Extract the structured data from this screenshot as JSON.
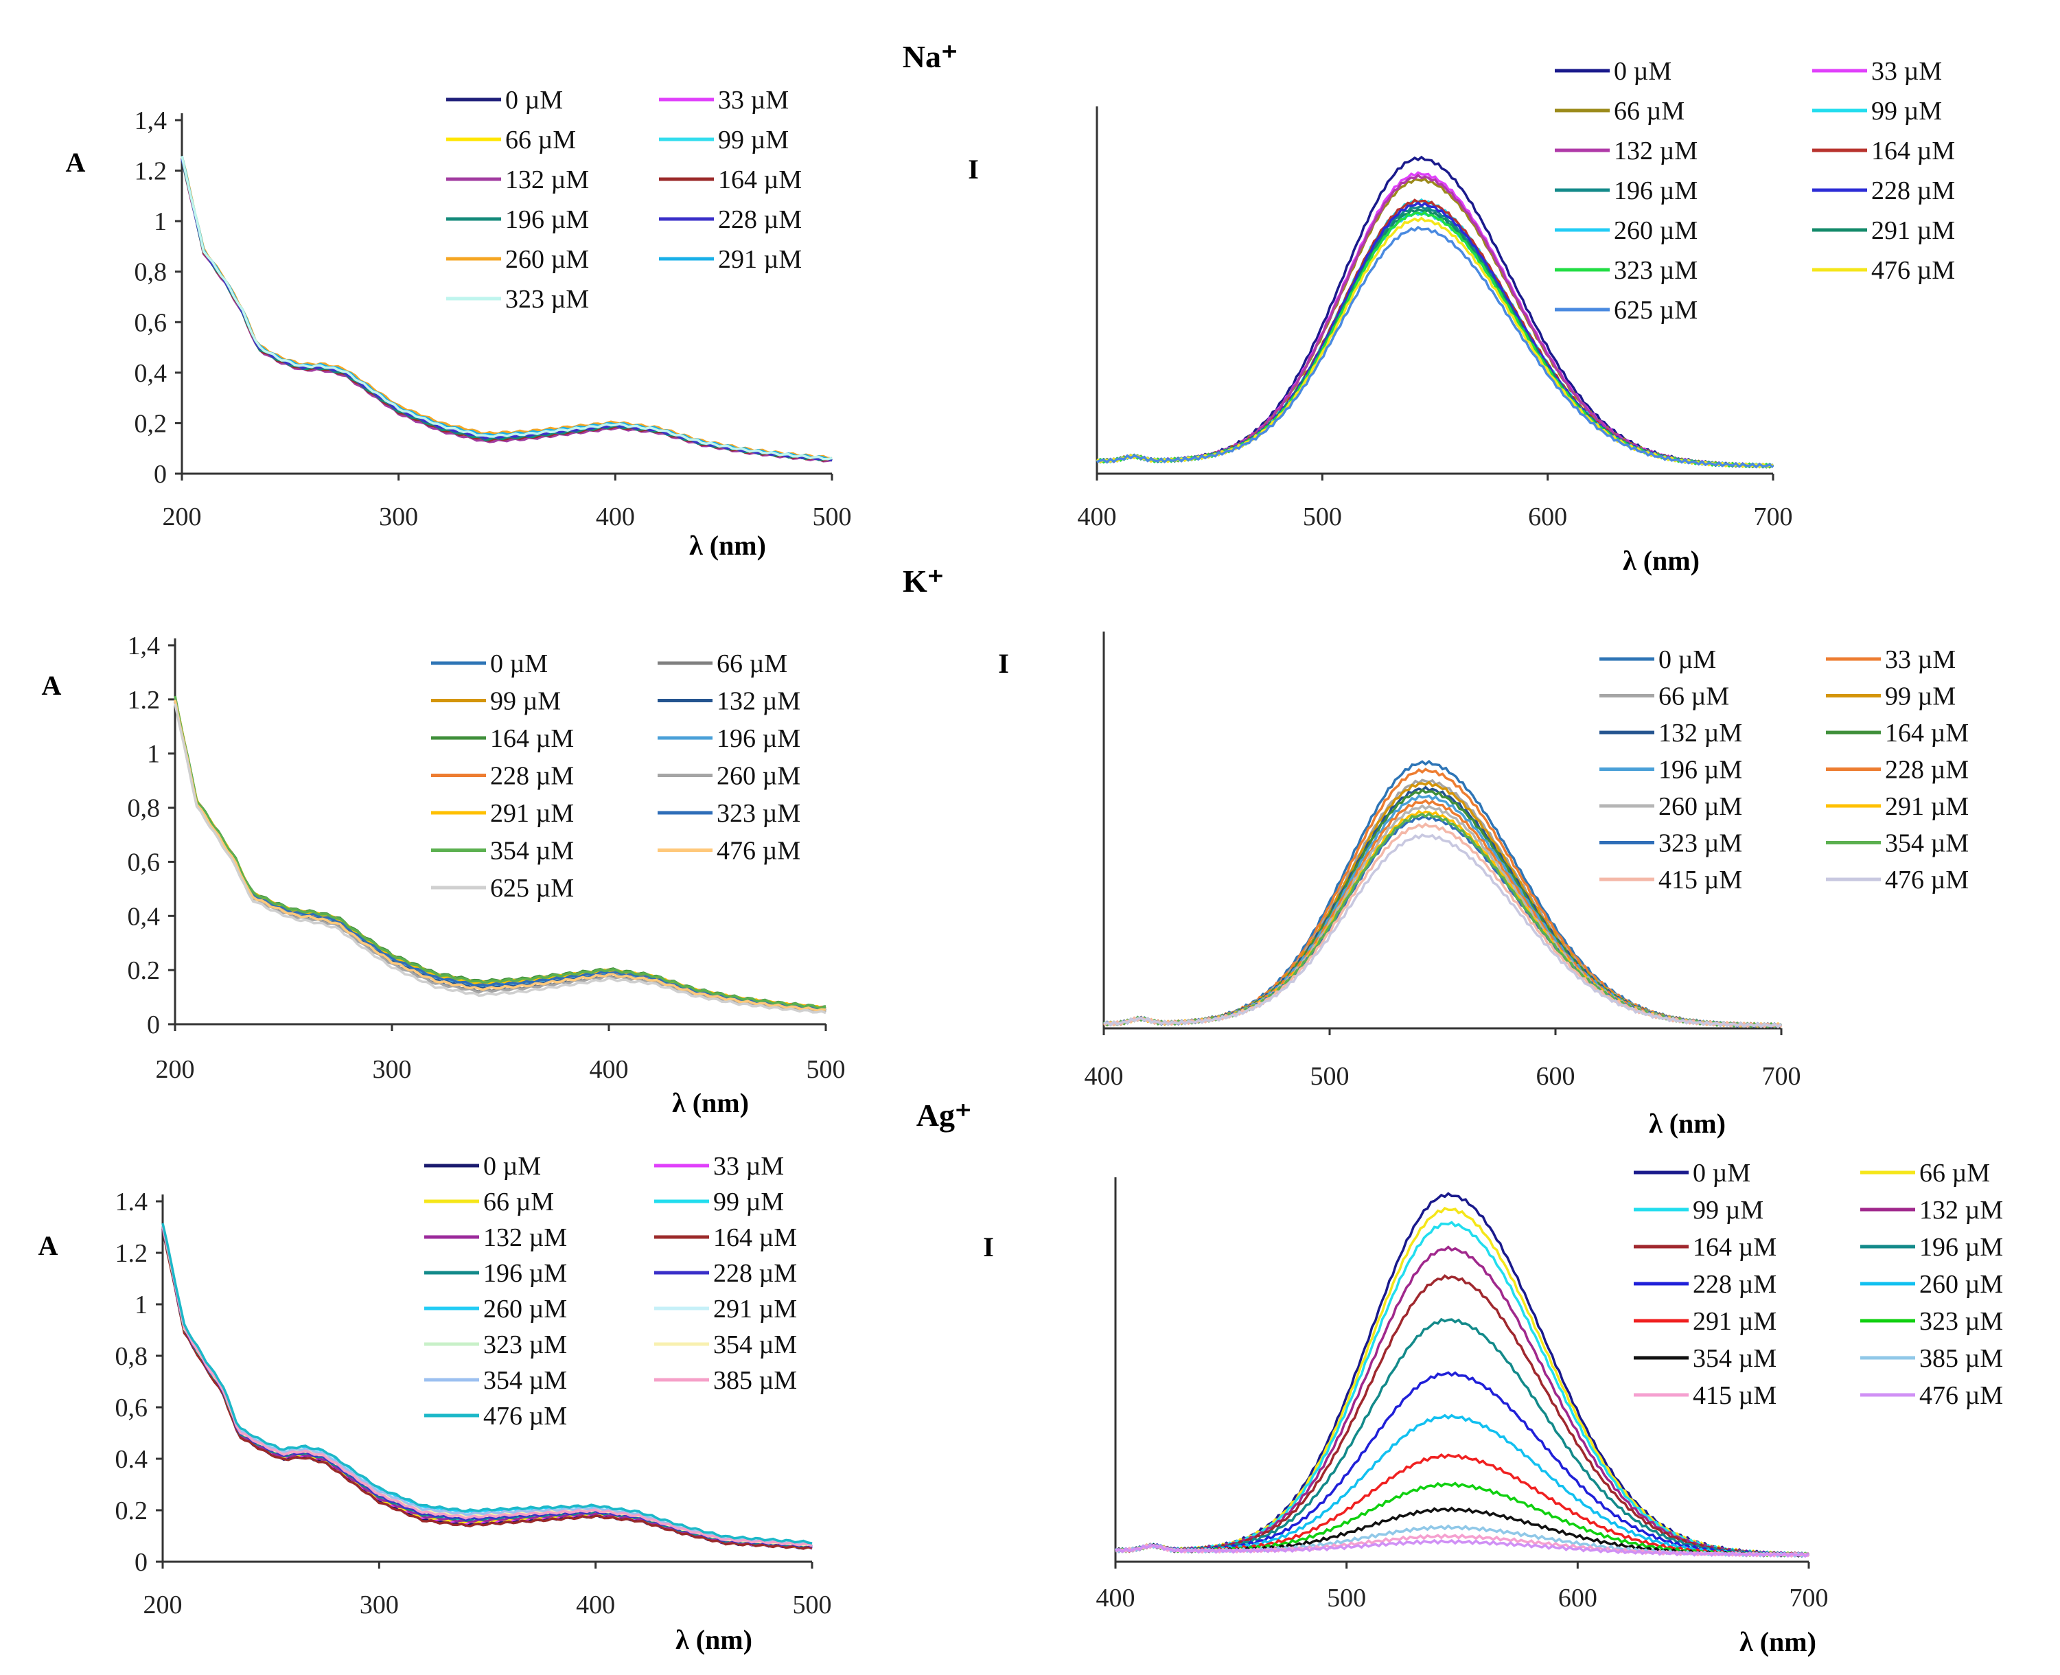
{
  "figure": {
    "ion_titles": [
      "Na⁺",
      "K⁺",
      "Ag⁺"
    ]
  },
  "chart_data": [
    {
      "id": "na_abs",
      "type": "line",
      "title": "Na⁺",
      "xlabel": "λ (nm)",
      "ylabel": "A",
      "xlim": [
        200,
        500
      ],
      "ylim": [
        0,
        1.4
      ],
      "xticks": [
        "200",
        "300",
        "400",
        "500"
      ],
      "yticks": [
        "0",
        "0,2",
        "0,4",
        "0,6",
        "0,8",
        "1",
        "1.2",
        "1,4"
      ],
      "ytick_values": [
        0,
        0.2,
        0.4,
        0.6,
        0.8,
        1,
        1.2,
        1.4
      ],
      "grid": false,
      "legend_position": "top-right",
      "x": [
        200,
        210,
        220,
        228,
        235,
        245,
        255,
        265,
        275,
        285,
        300,
        320,
        340,
        360,
        380,
        400,
        420,
        440,
        460,
        480,
        500
      ],
      "base": [
        1.25,
        0.88,
        0.76,
        0.64,
        0.5,
        0.45,
        0.42,
        0.42,
        0.4,
        0.34,
        0.25,
        0.18,
        0.14,
        0.15,
        0.17,
        0.19,
        0.17,
        0.12,
        0.09,
        0.07,
        0.055
      ],
      "series": [
        {
          "name": "0 µM",
          "color": "#1f1f7a",
          "offset": 0
        },
        {
          "name": "33 µM",
          "color": "#e040fb",
          "offset": 0.004
        },
        {
          "name": "66 µM",
          "color": "#ffe600",
          "offset": 0.01
        },
        {
          "name": "99 µM",
          "color": "#33ddee",
          "offset": 0.006
        },
        {
          "name": "132 µM",
          "color": "#a23ca0",
          "offset": -0.008
        },
        {
          "name": "164 µM",
          "color": "#9b2a2a",
          "offset": -0.004
        },
        {
          "name": "196  µM",
          "color": "#138a7a",
          "offset": -0.002
        },
        {
          "name": "228 µM",
          "color": "#3a2fc8",
          "offset": 0.002
        },
        {
          "name": "260 µM",
          "color": "#f5a623",
          "offset": 0.012
        },
        {
          "name": "291 µM",
          "color": "#19b0e8",
          "offset": 0.008
        },
        {
          "name": "323 µM",
          "color": "#bff5ee",
          "offset": 0.005
        }
      ]
    },
    {
      "id": "na_em",
      "type": "line",
      "xlabel": "λ (nm)",
      "ylabel": "I",
      "xlim": [
        400,
        700
      ],
      "xticks": [
        "400",
        "500",
        "600",
        "700"
      ],
      "grid": false,
      "legend_position": "top-right",
      "peak_nm": 543,
      "series": [
        {
          "name": "0 µM",
          "color": "#1a1a8c",
          "peak": 1.0
        },
        {
          "name": "33 µM",
          "color": "#e040fb",
          "peak": 0.95
        },
        {
          "name": "66 µM",
          "color": "#9b8a1a",
          "peak": 0.93
        },
        {
          "name": "99 µM",
          "color": "#22ddee",
          "peak": 0.86
        },
        {
          "name": "132 µM",
          "color": "#b03aa8",
          "peak": 0.94
        },
        {
          "name": "164 µM",
          "color": "#b8332e",
          "peak": 0.86
        },
        {
          "name": "196  µM",
          "color": "#138a8a",
          "peak": 0.84
        },
        {
          "name": "228 µM",
          "color": "#2c2cd6",
          "peak": 0.85
        },
        {
          "name": "260 µM",
          "color": "#22ccf5",
          "peak": 0.82
        },
        {
          "name": "291 µM",
          "color": "#138a6a",
          "peak": 0.83
        },
        {
          "name": "323 µM",
          "color": "#22dd44",
          "peak": 0.82
        },
        {
          "name": "476 µM",
          "color": "#f5e61a",
          "peak": 0.8
        },
        {
          "name": "625 µM",
          "color": "#4a8ae0",
          "peak": 0.77
        }
      ]
    },
    {
      "id": "k_abs",
      "type": "line",
      "title": "K⁺",
      "xlabel": "λ (nm)",
      "ylabel": "A",
      "xlim": [
        200,
        500
      ],
      "ylim": [
        0,
        1.4
      ],
      "xticks": [
        "200",
        "300",
        "400",
        "500"
      ],
      "yticks": [
        "0",
        "0.2",
        "0,4",
        "0,6",
        "0,8",
        "1",
        "1.2",
        "1,4"
      ],
      "ytick_values": [
        0,
        0.2,
        0.4,
        0.6,
        0.8,
        1,
        1.2,
        1.4
      ],
      "grid": false,
      "legend_position": "top-right",
      "x": [
        200,
        210,
        220,
        228,
        235,
        245,
        255,
        265,
        275,
        285,
        300,
        320,
        340,
        360,
        380,
        400,
        420,
        440,
        460,
        480,
        500
      ],
      "base": [
        1.2,
        0.82,
        0.7,
        0.6,
        0.48,
        0.44,
        0.41,
        0.4,
        0.38,
        0.32,
        0.24,
        0.17,
        0.14,
        0.15,
        0.17,
        0.19,
        0.17,
        0.12,
        0.09,
        0.07,
        0.055
      ],
      "series": [
        {
          "name": "0 µM",
          "color": "#2e75b6",
          "offset": 0
        },
        {
          "name": "66 µM",
          "color": "#808080",
          "offset": -0.01
        },
        {
          "name": "99 µM",
          "color": "#d4950a",
          "offset": 0.004
        },
        {
          "name": "132 µM",
          "color": "#24548f",
          "offset": -0.004
        },
        {
          "name": "164 µM",
          "color": "#3f8f3a",
          "offset": 0.012
        },
        {
          "name": "196  µM",
          "color": "#4aa0d8",
          "offset": 0.003
        },
        {
          "name": "228 µM",
          "color": "#ed7d31",
          "offset": 0.006
        },
        {
          "name": "260 µM",
          "color": "#a5a5a5",
          "offset": -0.012
        },
        {
          "name": "291 µM",
          "color": "#ffc000",
          "offset": 0.008
        },
        {
          "name": "323 µM",
          "color": "#2f6eb8",
          "offset": 0.002
        },
        {
          "name": "354 µM",
          "color": "#5bb04f",
          "offset": 0.01
        },
        {
          "name": "476 µM",
          "color": "#ffc87a",
          "offset": -0.006
        },
        {
          "name": "625 µM",
          "color": "#d0d0d0",
          "offset": -0.02
        }
      ]
    },
    {
      "id": "k_em",
      "type": "line",
      "xlabel": "λ (nm)",
      "ylabel": "I",
      "xlim": [
        400,
        700
      ],
      "xticks": [
        "400",
        "500",
        "600",
        "700"
      ],
      "grid": false,
      "legend_position": "top-right",
      "peak_nm": 542,
      "series": [
        {
          "name": "0 µM",
          "color": "#2e75b6",
          "peak": 1.0
        },
        {
          "name": "33 µM",
          "color": "#ed7d31",
          "peak": 0.97
        },
        {
          "name": "66 µM",
          "color": "#a5a5a5",
          "peak": 0.93
        },
        {
          "name": "99 µM",
          "color": "#d4950a",
          "peak": 0.92
        },
        {
          "name": "132 µM",
          "color": "#24548f",
          "peak": 0.9
        },
        {
          "name": "164 µM",
          "color": "#3f8f3a",
          "peak": 0.89
        },
        {
          "name": "196  µM",
          "color": "#4aa0d8",
          "peak": 0.87
        },
        {
          "name": "228 µM",
          "color": "#ed7d31",
          "peak": 0.85
        },
        {
          "name": "260 µM",
          "color": "#b5b5b5",
          "peak": 0.83
        },
        {
          "name": "291 µM",
          "color": "#ffc000",
          "peak": 0.81
        },
        {
          "name": "323 µM",
          "color": "#2f6eb8",
          "peak": 0.79
        },
        {
          "name": "354 µM",
          "color": "#5bb04f",
          "peak": 0.8
        },
        {
          "name": "415 µM",
          "color": "#f4b8a8",
          "peak": 0.76
        },
        {
          "name": "476 µM",
          "color": "#c8c8e0",
          "peak": 0.72
        }
      ]
    },
    {
      "id": "ag_abs",
      "type": "line",
      "title": "Ag⁺",
      "xlabel": "λ (nm)",
      "ylabel": "A",
      "xlim": [
        200,
        500
      ],
      "ylim": [
        0,
        1.4
      ],
      "xticks": [
        "200",
        "300",
        "400",
        "500"
      ],
      "yticks": [
        "0",
        "0.2",
        "0.4",
        "0,6",
        "0,8",
        "1",
        "1.2",
        "1.4"
      ],
      "ytick_values": [
        0,
        0.2,
        0.4,
        0.6,
        0.8,
        1,
        1.2,
        1.4
      ],
      "grid": false,
      "legend_position": "top-right",
      "x": [
        200,
        210,
        220,
        228,
        235,
        245,
        255,
        265,
        275,
        285,
        300,
        320,
        340,
        360,
        380,
        400,
        420,
        440,
        460,
        480,
        500
      ],
      "base": [
        1.3,
        0.9,
        0.76,
        0.66,
        0.5,
        0.45,
        0.41,
        0.42,
        0.4,
        0.34,
        0.25,
        0.18,
        0.16,
        0.17,
        0.18,
        0.19,
        0.17,
        0.12,
        0.08,
        0.07,
        0.06
      ],
      "series": [
        {
          "name": "0 µM",
          "color": "#1a1a6e",
          "offset": -0.01
        },
        {
          "name": "33 µM",
          "color": "#e040fb",
          "offset": -0.006
        },
        {
          "name": "66 µM",
          "color": "#f5e61a",
          "offset": -0.004
        },
        {
          "name": "99 µM",
          "color": "#22ddee",
          "offset": 0.0
        },
        {
          "name": "132 µM",
          "color": "#9b2a9b",
          "offset": -0.002
        },
        {
          "name": "164 µM",
          "color": "#9b2a2a",
          "offset": -0.012
        },
        {
          "name": "196  µM",
          "color": "#138a8a",
          "offset": 0.002
        },
        {
          "name": "228 µM",
          "color": "#3a2fc8",
          "offset": 0.004
        },
        {
          "name": "260 µM",
          "color": "#22ccf5",
          "offset": 0.02
        },
        {
          "name": "291 µM",
          "color": "#c6f0f8",
          "offset": 0.014
        },
        {
          "name": "323 µM",
          "color": "#c8f0c8",
          "offset": 0.012
        },
        {
          "name": "354 µM",
          "color": "#f8f0b0",
          "offset": 0.01
        },
        {
          "name": "354 µM",
          "color": "#9cc0f0",
          "offset": 0.016
        },
        {
          "name": "385 µM",
          "color": "#f5a0c8",
          "offset": 0.008
        },
        {
          "name": "476 µM",
          "color": "#1cb8c8",
          "offset": 0.024
        }
      ]
    },
    {
      "id": "ag_em",
      "type": "line",
      "xlabel": "λ (nm)",
      "ylabel": "I",
      "xlim": [
        400,
        700
      ],
      "xticks": [
        "400",
        "500",
        "600",
        "700"
      ],
      "grid": false,
      "legend_position": "top-right",
      "peak_nm": 544,
      "series": [
        {
          "name": "0 µM",
          "color": "#1a1a8c",
          "peak": 1.0
        },
        {
          "name": "66 µM",
          "color": "#f5e61a",
          "peak": 0.96
        },
        {
          "name": "99 µM",
          "color": "#22ddee",
          "peak": 0.92
        },
        {
          "name": "132 µM",
          "color": "#a0288c",
          "peak": 0.85
        },
        {
          "name": "164 µM",
          "color": "#a0282e",
          "peak": 0.77
        },
        {
          "name": "196  µM",
          "color": "#138a8a",
          "peak": 0.65
        },
        {
          "name": "228 µM",
          "color": "#2020d8",
          "peak": 0.5
        },
        {
          "name": "260 µM",
          "color": "#12c0f0",
          "peak": 0.38
        },
        {
          "name": "291 µM",
          "color": "#f02020",
          "peak": 0.27
        },
        {
          "name": "323 µM",
          "color": "#10d010",
          "peak": 0.19
        },
        {
          "name": "354 µM",
          "color": "#111111",
          "peak": 0.12
        },
        {
          "name": "385 µM",
          "color": "#90c8e8",
          "peak": 0.07
        },
        {
          "name": "415 µM",
          "color": "#f5a0d0",
          "peak": 0.045
        },
        {
          "name": "476 µM",
          "color": "#d090f5",
          "peak": 0.03
        }
      ]
    }
  ]
}
